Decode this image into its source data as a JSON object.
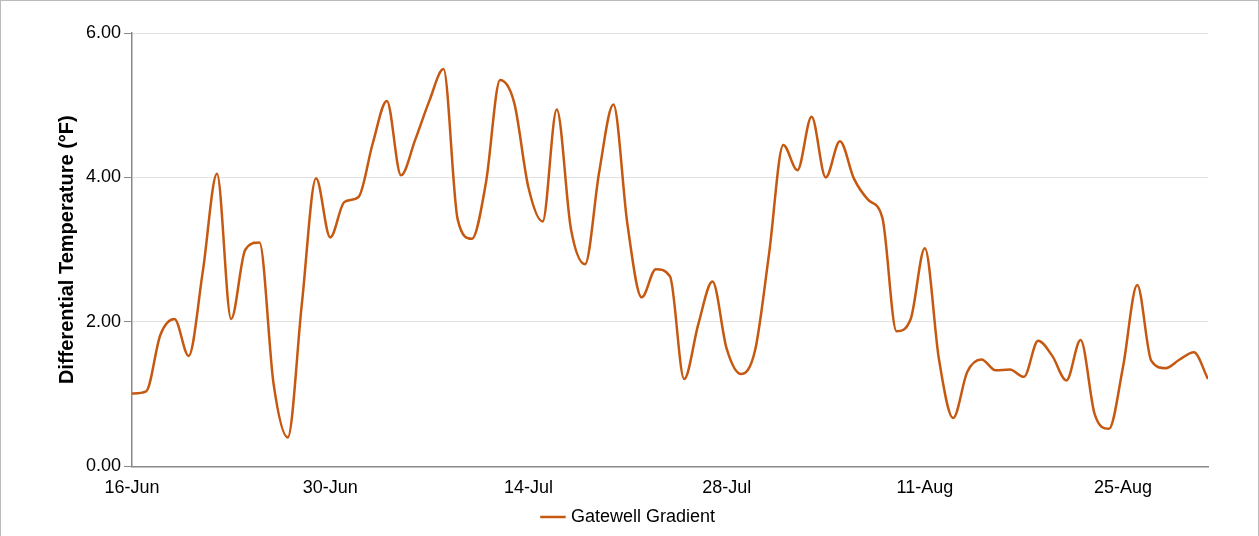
{
  "chart_data": {
    "type": "line",
    "ylabel": "Differential Temperature (°F)",
    "x": [
      "--06-16",
      "--06-17",
      "--06-18",
      "--06-19",
      "--06-20",
      "--06-21",
      "--06-22",
      "--06-23",
      "--06-24",
      "--06-25",
      "--06-26",
      "--06-27",
      "--06-28",
      "--06-29",
      "--06-30",
      "--07-01",
      "--07-02",
      "--07-03",
      "--07-04",
      "--07-05",
      "--07-06",
      "--07-07",
      "--07-08",
      "--07-09",
      "--07-10",
      "--07-11",
      "--07-12",
      "--07-13",
      "--07-14",
      "--07-15",
      "--07-16",
      "--07-17",
      "--07-18",
      "--07-19",
      "--07-20",
      "--07-21",
      "--07-22",
      "--07-23",
      "--07-24",
      "--07-25",
      "--07-26",
      "--07-27",
      "--07-28",
      "--07-29",
      "--07-30",
      "--07-31",
      "--08-01",
      "--08-02",
      "--08-03",
      "--08-04",
      "--08-05",
      "--08-06",
      "--08-07",
      "--08-08",
      "--08-09",
      "--08-10",
      "--08-11",
      "--08-12",
      "--08-13",
      "--08-14",
      "--08-15",
      "--08-16",
      "--08-17",
      "--08-18",
      "--08-19",
      "--08-20",
      "--08-21",
      "--08-22",
      "--08-23",
      "--08-24",
      "--08-25",
      "--08-26",
      "--08-27",
      "--08-28",
      "--08-29",
      "--08-30",
      "--08-31"
    ],
    "series": [
      {
        "name": "Gatewell Gradient",
        "color": "#c65911",
        "values": [
          1.01,
          1.04,
          1.82,
          2.04,
          1.53,
          2.7,
          4.05,
          2.04,
          3.0,
          3.1,
          1.14,
          0.4,
          2.26,
          3.99,
          3.17,
          3.66,
          3.73,
          4.47,
          5.06,
          4.03,
          4.52,
          5.06,
          5.5,
          3.42,
          3.15,
          3.93,
          5.35,
          5.03,
          3.86,
          3.39,
          4.94,
          3.29,
          2.8,
          4.08,
          5.01,
          3.34,
          2.34,
          2.73,
          2.63,
          1.21,
          1.97,
          2.56,
          1.63,
          1.28,
          1.6,
          2.95,
          4.45,
          4.1,
          4.84,
          4.0,
          4.5,
          3.98,
          3.69,
          3.44,
          1.87,
          2.04,
          3.02,
          1.48,
          0.67,
          1.31,
          1.48,
          1.33,
          1.34,
          1.24,
          1.74,
          1.53,
          1.19,
          1.75,
          0.72,
          0.52,
          1.38,
          2.51,
          1.46,
          1.36,
          1.48,
          1.58,
          1.21
        ]
      }
    ],
    "xlim": [
      "--06-16",
      "--08-31"
    ],
    "xticks": [
      {
        "value": "--06-16",
        "label": "16-Jun"
      },
      {
        "value": "--06-30",
        "label": "30-Jun"
      },
      {
        "value": "--07-14",
        "label": "14-Jul"
      },
      {
        "value": "--07-28",
        "label": "28-Jul"
      },
      {
        "value": "--08-11",
        "label": "11-Aug"
      },
      {
        "value": "--08-25",
        "label": "25-Aug"
      }
    ],
    "ylim": [
      0,
      6
    ],
    "yticks": [
      {
        "value": 0,
        "label": "0.00"
      },
      {
        "value": 2,
        "label": "2.00"
      },
      {
        "value": 4,
        "label": "4.00"
      },
      {
        "value": 6,
        "label": "6.00"
      }
    ],
    "grid": "y",
    "legend": "bottom",
    "marker": "none",
    "line_style": "solid"
  }
}
